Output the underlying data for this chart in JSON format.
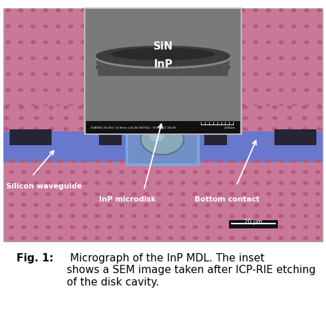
{
  "fig_width": 4.74,
  "fig_height": 4.56,
  "dpi": 100,
  "caption_bold": "Fig. 1:",
  "caption_normal": " Micrograph of the InP MDL. The inset\nshows a SEM image taken after ICP-RIE etching\nof the disk cavity.",
  "caption_fontsize": 11.0,
  "bg_color": "#ffffff",
  "pink_bg": "#c87898",
  "pink_dot": "#b85878",
  "blue_layer": "#6878cc",
  "dark_strip": "#252535",
  "box_fill": "#7090c8",
  "box_edge": "#80a8e0",
  "disk_fill": "#8aaabb",
  "disk_edge": "#607080",
  "inset_bg": "#808080",
  "sem_bar": "#111111",
  "white": "#ffffff",
  "SiN_label": "SiN",
  "InP_label": "InP",
  "scale_label": "20 μm",
  "metadata": "SU8000 20.0kV 13.9mm x25.0k SE(TUL)  9/3/2012 18:49",
  "scale_sem": "2.00um"
}
